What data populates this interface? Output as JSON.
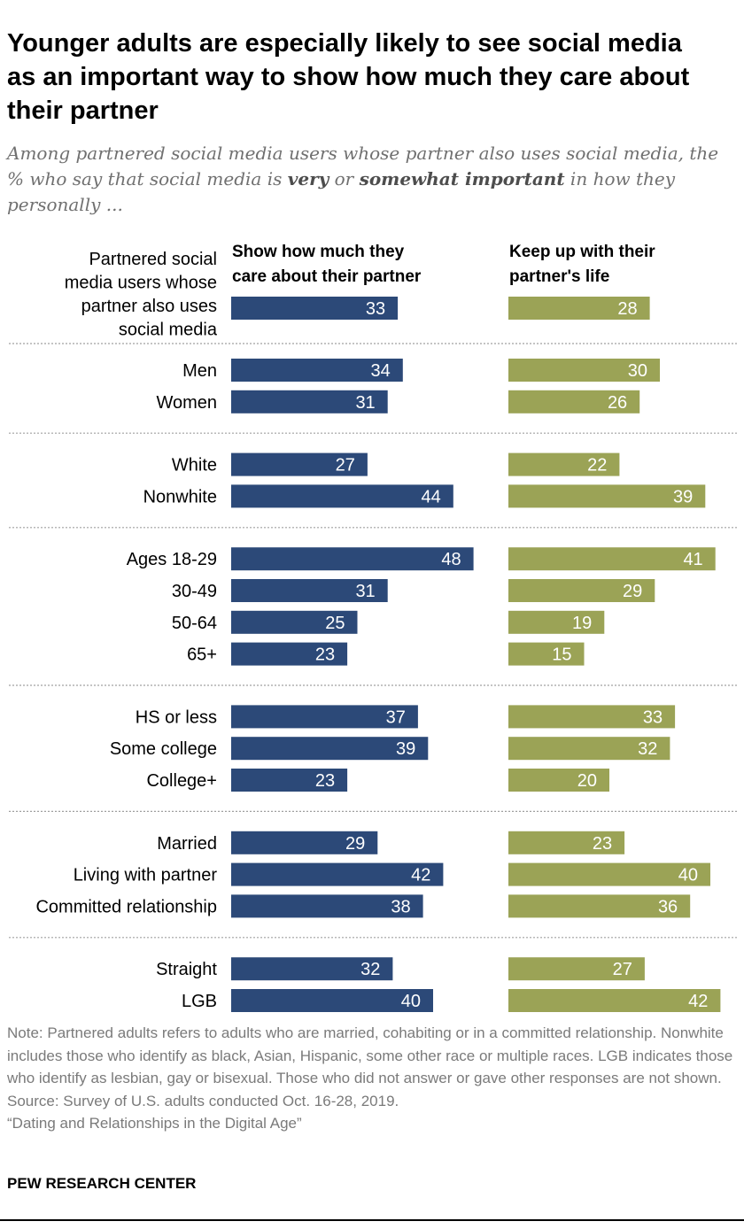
{
  "title": "Younger adults are especially likely to see social media as an important way to show how much they care about their partner",
  "subtitle": {
    "part1": "Among partnered social media users whose partner also uses social media, the % who say that social media is ",
    "em1": "very",
    "part2": " or ",
    "em2": "somewhat important",
    "part3": " in how they personally ..."
  },
  "notes": {
    "note": "Note: Partnered adults refers to adults who are married, cohabiting or in a committed relationship. Nonwhite includes those who identify as black, Asian, Hispanic, some other race or multiple races. LGB indicates those who identify as lesbian, gay or bisexual. Those who did not answer or gave other responses are not shown.",
    "source": "Source: Survey of U.S. adults conducted Oct. 16-28, 2019.",
    "report": "“Dating and Relationships in the Digital Age”"
  },
  "org": "PEW RESEARCH CENTER",
  "colors": {
    "series1": "#2c4978",
    "series2": "#9ba356",
    "divider": "#a0a0a0"
  },
  "chart_data": {
    "type": "bar",
    "orientation": "horizontal",
    "series": [
      {
        "name": "Show how much they care about their partner",
        "values": [
          33,
          34,
          31,
          27,
          44,
          48,
          31,
          25,
          23,
          37,
          39,
          23,
          29,
          42,
          38,
          32,
          40
        ]
      },
      {
        "name": "Keep up with their partner's life",
        "values": [
          28,
          30,
          26,
          22,
          39,
          41,
          29,
          19,
          15,
          33,
          32,
          20,
          23,
          40,
          36,
          27,
          42
        ]
      }
    ],
    "categories": [
      "Partnered social media users whose partner also uses social media",
      "Men",
      "Women",
      "White",
      "Nonwhite",
      "Ages 18-29",
      "30-49",
      "50-64",
      "65+",
      "HS or less",
      "Some college",
      "College+",
      "Married",
      "Living with partner",
      "Committed relationship",
      "Straight",
      "LGB"
    ],
    "groups": [
      [
        "Partnered social media users whose partner also uses social media"
      ],
      [
        "Men",
        "Women"
      ],
      [
        "White",
        "Nonwhite"
      ],
      [
        "Ages 18-29",
        "30-49",
        "50-64",
        "65+"
      ],
      [
        "HS or less",
        "Some college",
        "College+"
      ],
      [
        "Married",
        "Living with partner",
        "Committed relationship"
      ],
      [
        "Straight",
        "LGB"
      ]
    ],
    "column_headers": [
      "Show how much they care about their partner",
      "Keep up with their partner's life"
    ],
    "first_category_lines": [
      "Partnered social",
      "media users whose",
      "partner also uses",
      "social media"
    ],
    "data_labels": true,
    "grid": false,
    "legend": "column headers above bars"
  }
}
